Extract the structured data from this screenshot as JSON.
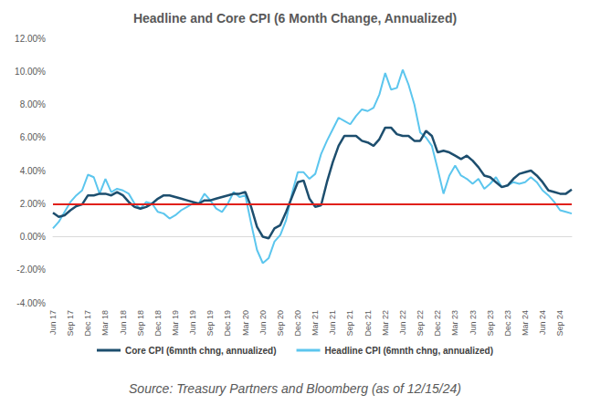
{
  "chart_data": {
    "type": "line",
    "title": "Headline and Core CPI (6 Month Change, Annualized)",
    "source": "Source: Treasury Partners and Bloomberg (as of 12/15/24)",
    "categories": [
      "Jun 17",
      null,
      null,
      "Sep 17",
      null,
      null,
      "Dec 17",
      null,
      null,
      "Mar 18",
      null,
      null,
      "Jun 18",
      null,
      null,
      "Sep 18",
      null,
      null,
      "Dec 18",
      null,
      null,
      "Mar 19",
      null,
      null,
      "Jun 19",
      null,
      null,
      "Sep 19",
      null,
      null,
      "Dec 19",
      null,
      null,
      "Mar 20",
      null,
      null,
      "Jun 20",
      null,
      null,
      "Sep 20",
      null,
      null,
      "Dec 20",
      null,
      null,
      "Mar 21",
      null,
      null,
      "Jun 21",
      null,
      null,
      "Sep 21",
      null,
      null,
      "Dec 21",
      null,
      null,
      "Mar 22",
      null,
      null,
      "Jun 22",
      null,
      null,
      "Sep 22",
      null,
      null,
      "Dec 22",
      null,
      null,
      "Mar 23",
      null,
      null,
      "Jun 23",
      null,
      null,
      "Sep 23",
      null,
      null,
      "Dec 23",
      null,
      null,
      "Mar 24",
      null,
      null,
      "Jun 24",
      null,
      null,
      "Sep 24",
      null,
      null
    ],
    "series": [
      {
        "name": "Core CPI (6mnth chng, annualized)",
        "color": "#1d4e6e",
        "values": [
          1.45,
          1.2,
          1.3,
          1.6,
          1.85,
          1.95,
          2.5,
          2.5,
          2.6,
          2.6,
          2.5,
          2.7,
          2.5,
          2.1,
          1.8,
          1.7,
          1.8,
          2.0,
          2.3,
          2.5,
          2.5,
          2.4,
          2.3,
          2.2,
          2.1,
          2.0,
          2.2,
          2.2,
          2.3,
          2.4,
          2.5,
          2.6,
          2.6,
          2.7,
          1.8,
          0.6,
          0.0,
          -0.1,
          0.5,
          0.7,
          1.5,
          2.4,
          3.3,
          3.4,
          2.3,
          1.8,
          1.9,
          3.3,
          4.5,
          5.5,
          6.1,
          6.1,
          6.1,
          5.8,
          5.7,
          5.5,
          5.9,
          6.6,
          6.6,
          6.2,
          6.1,
          6.1,
          5.8,
          5.8,
          6.4,
          6.1,
          5.1,
          5.2,
          5.1,
          4.9,
          4.7,
          4.9,
          4.6,
          4.2,
          3.7,
          3.6,
          3.3,
          3.0,
          3.1,
          3.5,
          3.8,
          3.9,
          4.0,
          3.7,
          3.3,
          2.8,
          2.7,
          2.6,
          2.6,
          2.85
        ]
      },
      {
        "name": "Headline CPI (6mnth chng, annualized)",
        "color": "#5cc6ee",
        "values": [
          0.5,
          0.9,
          1.5,
          2.1,
          2.5,
          2.8,
          3.75,
          3.6,
          2.6,
          3.5,
          2.7,
          2.9,
          2.8,
          2.6,
          2.0,
          1.7,
          2.1,
          2.0,
          1.5,
          1.4,
          1.1,
          1.3,
          1.6,
          1.8,
          2.0,
          2.0,
          2.6,
          2.2,
          1.7,
          1.5,
          2.0,
          2.7,
          2.4,
          2.5,
          0.8,
          -0.8,
          -1.6,
          -1.3,
          -0.3,
          0.1,
          1.0,
          2.6,
          3.9,
          3.9,
          3.5,
          3.8,
          5.0,
          5.8,
          6.5,
          7.2,
          7.0,
          6.8,
          7.3,
          7.7,
          7.6,
          7.8,
          8.6,
          9.9,
          8.9,
          9.0,
          10.1,
          9.2,
          8.0,
          6.3,
          6.0,
          5.5,
          4.1,
          2.6,
          3.7,
          4.3,
          3.7,
          3.5,
          3.2,
          3.5,
          2.9,
          3.2,
          3.6,
          3.0,
          3.1,
          3.3,
          3.2,
          3.3,
          3.6,
          3.3,
          2.8,
          2.5,
          2.1,
          1.6,
          1.5,
          1.4
        ]
      }
    ],
    "reference_line": {
      "value": 2,
      "color": "#e0201b"
    },
    "ylim": [
      -4,
      12
    ],
    "yticks": [
      {
        "value": -4,
        "label": "-4.00%"
      },
      {
        "value": -2,
        "label": "-2.00%"
      },
      {
        "value": 0,
        "label": "0.00%"
      },
      {
        "value": 2,
        "label": "2.00%"
      },
      {
        "value": 4,
        "label": "4.00%"
      },
      {
        "value": 6,
        "label": "6.00%"
      },
      {
        "value": 8,
        "label": "8.00%"
      },
      {
        "value": 10,
        "label": "10.00%"
      },
      {
        "value": 12,
        "label": "12.00%"
      }
    ],
    "grid": false,
    "legend": "bottom"
  }
}
